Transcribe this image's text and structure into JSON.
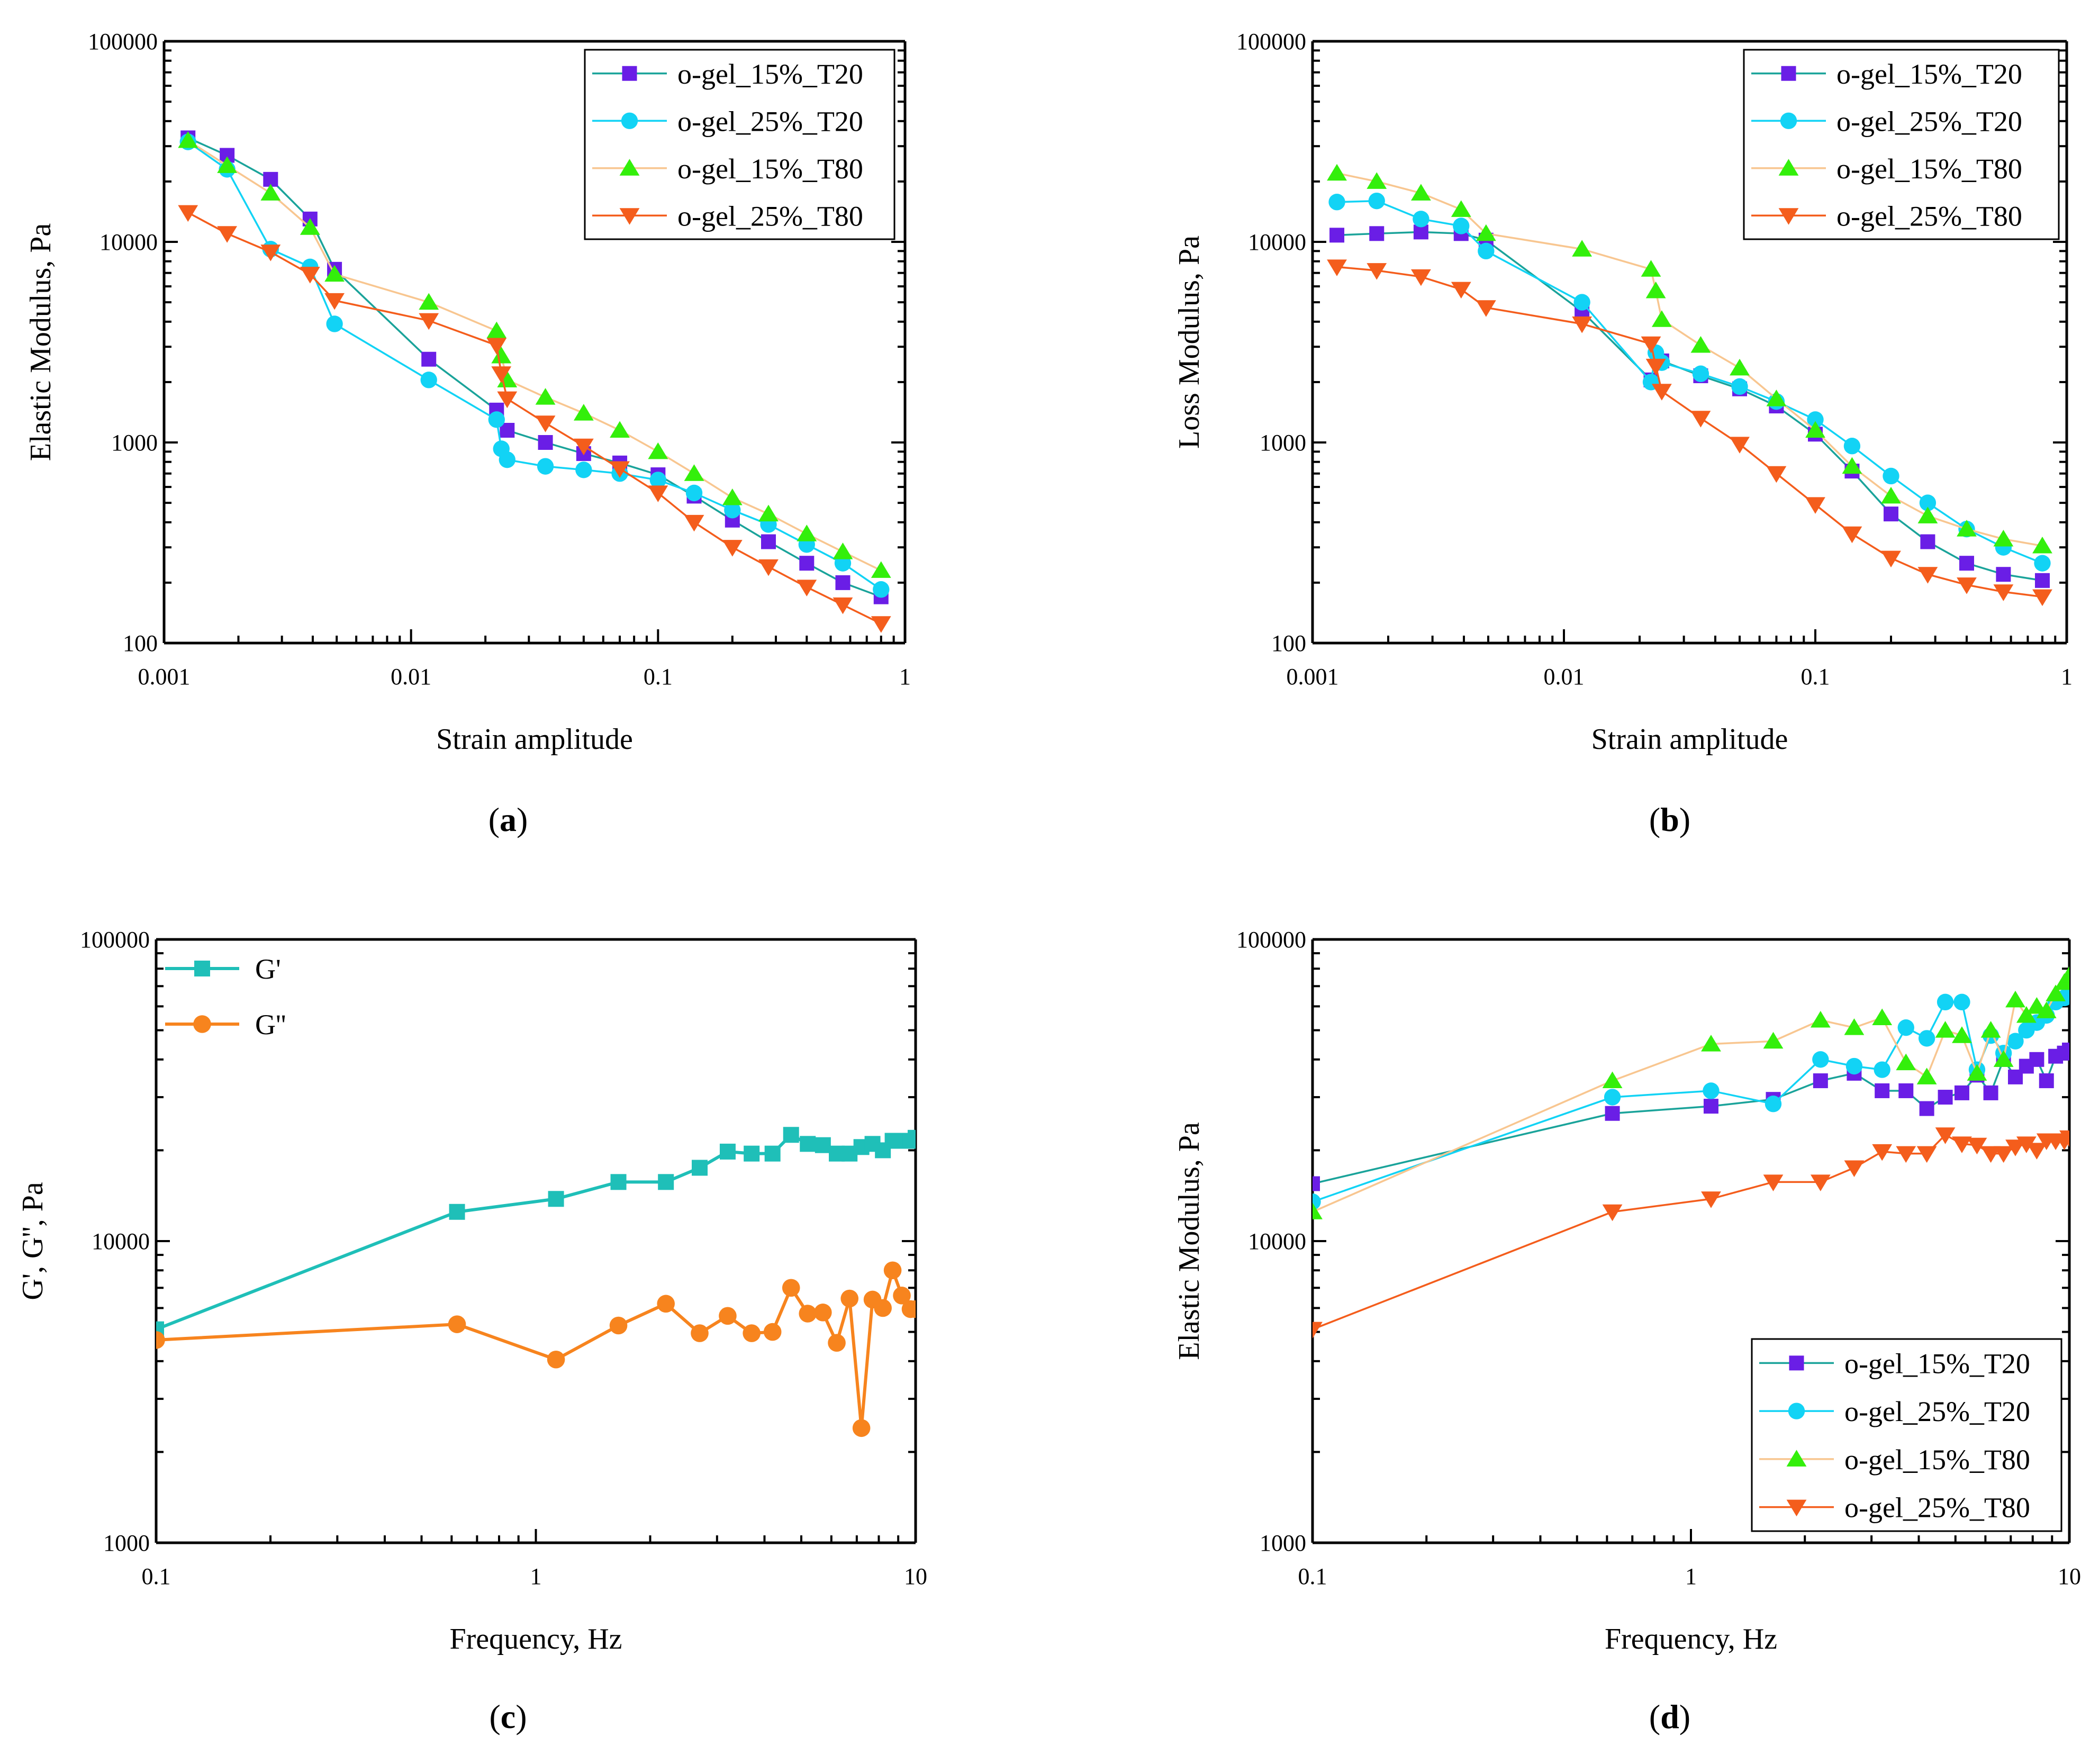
{
  "chart_data": [
    {
      "type": "line",
      "panel_label": "a",
      "xlabel": "Strain amplitude",
      "ylabel": "Elastic Modulus, Pa",
      "xscale": "log",
      "yscale": "log",
      "xlim": [
        0.001,
        1
      ],
      "ylim": [
        100,
        100000
      ],
      "xticks": [
        0.001,
        0.01,
        0.1,
        1
      ],
      "xtick_labels": [
        "0.001",
        "0.01",
        "0.1",
        "1"
      ],
      "yticks": [
        100,
        1000,
        10000,
        100000
      ],
      "ytick_labels": [
        "100",
        "1000",
        "10000",
        "100000"
      ],
      "legend": "top-right",
      "series": [
        {
          "name": "o-gel_15%_T20",
          "color": "#6a1ee6",
          "line_color": "#1aa39a",
          "marker": "square",
          "x": [
            0.00125,
            0.0018,
            0.0027,
            0.0039,
            0.0049,
            0.0118,
            0.0222,
            0.0245,
            0.035,
            0.05,
            0.07,
            0.1,
            0.14,
            0.2,
            0.28,
            0.4,
            0.56,
            0.8
          ],
          "y": [
            33000,
            27000,
            20500,
            13000,
            7300,
            2600,
            1450,
            1150,
            1000,
            880,
            790,
            690,
            540,
            410,
            320,
            250,
            200,
            170
          ]
        },
        {
          "name": "o-gel_25%_T20",
          "color": "#12d3f5",
          "line_color": "#12d3f5",
          "marker": "circle",
          "x": [
            0.00125,
            0.0018,
            0.0027,
            0.0039,
            0.0049,
            0.0118,
            0.0222,
            0.0232,
            0.0245,
            0.035,
            0.05,
            0.07,
            0.1,
            0.14,
            0.2,
            0.28,
            0.4,
            0.56,
            0.8
          ],
          "y": [
            31500,
            23000,
            9200,
            7500,
            3900,
            2050,
            1300,
            930,
            820,
            760,
            730,
            700,
            650,
            560,
            460,
            390,
            310,
            250,
            185
          ]
        },
        {
          "name": "o-gel_15%_T80",
          "color": "#33ef0b",
          "line_color": "#f8c690",
          "marker": "triangle-up",
          "x": [
            0.00125,
            0.0018,
            0.0027,
            0.0039,
            0.0049,
            0.0118,
            0.0222,
            0.0232,
            0.0245,
            0.035,
            0.05,
            0.07,
            0.1,
            0.14,
            0.2,
            0.28,
            0.4,
            0.56,
            0.8
          ],
          "y": [
            32000,
            24000,
            17500,
            11800,
            6900,
            5000,
            3600,
            2700,
            2050,
            1680,
            1400,
            1150,
            900,
            700,
            530,
            440,
            350,
            285,
            230
          ]
        },
        {
          "name": "o-gel_25%_T80",
          "color": "#f45d1c",
          "line_color": "#f45d1c",
          "marker": "triangle-down",
          "x": [
            0.00125,
            0.0018,
            0.0027,
            0.0039,
            0.0049,
            0.0118,
            0.0222,
            0.0232,
            0.0245,
            0.035,
            0.05,
            0.07,
            0.1,
            0.14,
            0.2,
            0.28,
            0.4,
            0.56,
            0.8
          ],
          "y": [
            14000,
            11000,
            8900,
            6900,
            5100,
            4050,
            3050,
            2200,
            1650,
            1250,
            960,
            740,
            560,
            400,
            300,
            240,
            190,
            155,
            125
          ]
        }
      ]
    },
    {
      "type": "line",
      "panel_label": "b",
      "xlabel": "Strain amplitude",
      "ylabel": "Loss Modulus, Pa",
      "xscale": "log",
      "yscale": "log",
      "xlim": [
        0.001,
        1
      ],
      "ylim": [
        100,
        100000
      ],
      "xticks": [
        0.001,
        0.01,
        0.1,
        1
      ],
      "xtick_labels": [
        "0.001",
        "0.01",
        "0.1",
        "1"
      ],
      "yticks": [
        100,
        1000,
        10000,
        100000
      ],
      "ytick_labels": [
        "100",
        "1000",
        "10000",
        "100000"
      ],
      "legend": "top-right",
      "series": [
        {
          "name": "o-gel_15%_T20",
          "color": "#6a1ee6",
          "line_color": "#1aa39a",
          "marker": "square",
          "x": [
            0.00125,
            0.0018,
            0.0027,
            0.0039,
            0.0049,
            0.0118,
            0.0222,
            0.0245,
            0.035,
            0.05,
            0.07,
            0.1,
            0.14,
            0.2,
            0.28,
            0.4,
            0.56,
            0.8
          ],
          "y": [
            10800,
            11000,
            11200,
            11000,
            10200,
            4500,
            2050,
            2550,
            2150,
            1850,
            1520,
            1100,
            720,
            440,
            320,
            250,
            220,
            205
          ]
        },
        {
          "name": "o-gel_25%_T20",
          "color": "#12d3f5",
          "line_color": "#12d3f5",
          "marker": "circle",
          "x": [
            0.00125,
            0.0018,
            0.0027,
            0.0039,
            0.0049,
            0.0118,
            0.0222,
            0.0232,
            0.0245,
            0.035,
            0.05,
            0.07,
            0.1,
            0.14,
            0.2,
            0.28,
            0.4,
            0.56,
            0.8
          ],
          "y": [
            15800,
            16000,
            13000,
            12000,
            9000,
            5000,
            2000,
            2800,
            2500,
            2200,
            1900,
            1600,
            1300,
            960,
            680,
            500,
            370,
            300,
            250
          ]
        },
        {
          "name": "o-gel_15%_T80",
          "color": "#33ef0b",
          "line_color": "#f8c690",
          "marker": "triangle-up",
          "x": [
            0.00125,
            0.0018,
            0.0027,
            0.0039,
            0.0049,
            0.0118,
            0.0222,
            0.0232,
            0.0245,
            0.035,
            0.05,
            0.07,
            0.1,
            0.14,
            0.2,
            0.28,
            0.4,
            0.56,
            0.8
          ],
          "y": [
            22000,
            20000,
            17500,
            14500,
            11000,
            9200,
            7300,
            5700,
            4100,
            3050,
            2350,
            1650,
            1150,
            760,
            540,
            430,
            370,
            330,
            305
          ]
        },
        {
          "name": "o-gel_25%_T80",
          "color": "#f45d1c",
          "line_color": "#f45d1c",
          "marker": "triangle-down",
          "x": [
            0.00125,
            0.0018,
            0.0027,
            0.0039,
            0.0049,
            0.0118,
            0.0222,
            0.0232,
            0.0245,
            0.035,
            0.05,
            0.07,
            0.1,
            0.14,
            0.2,
            0.28,
            0.4,
            0.56,
            0.8
          ],
          "y": [
            7500,
            7200,
            6700,
            5800,
            4700,
            3900,
            3100,
            2400,
            1800,
            1320,
            980,
            700,
            490,
            350,
            265,
            220,
            195,
            180,
            170
          ]
        }
      ]
    },
    {
      "type": "line",
      "panel_label": "c",
      "xlabel": "Frequency, Hz",
      "ylabel": "G', G'', Pa",
      "xscale": "log",
      "yscale": "log",
      "xlim": [
        0.1,
        10
      ],
      "ylim": [
        1000,
        100000
      ],
      "xticks": [
        0.1,
        1,
        10
      ],
      "xtick_labels": [
        "0.1",
        "1",
        "10"
      ],
      "yticks": [
        1000,
        10000,
        100000
      ],
      "ytick_labels": [
        "1000",
        "10000",
        "100000"
      ],
      "legend": "top-left",
      "series": [
        {
          "name": "G'",
          "color": "#1fbfb8",
          "line_color": "#1fbfb8",
          "marker": "square",
          "x": [
            0.1,
            0.62,
            1.13,
            1.65,
            2.2,
            2.7,
            3.2,
            3.7,
            4.2,
            4.7,
            5.2,
            5.7,
            6.2,
            6.7,
            7.2,
            7.7,
            8.2,
            8.7,
            9.2,
            9.7,
            10
          ],
          "y": [
            5100,
            12500,
            13800,
            15700,
            15700,
            17500,
            19800,
            19500,
            19500,
            22500,
            21000,
            20800,
            19500,
            19500,
            20500,
            21000,
            20000,
            21500,
            21500,
            21500,
            22000
          ]
        },
        {
          "name": "G''",
          "color": "#f7841e",
          "line_color": "#f7841e",
          "marker": "circle",
          "x": [
            0.1,
            0.62,
            1.13,
            1.65,
            2.2,
            2.7,
            3.2,
            3.7,
            4.2,
            4.7,
            5.2,
            5.7,
            6.2,
            6.7,
            7.2,
            7.7,
            8.2,
            8.7,
            9.2,
            9.7,
            10
          ],
          "y": [
            4700,
            5300,
            4050,
            5250,
            6200,
            4950,
            5650,
            4950,
            5000,
            7000,
            5750,
            5800,
            4600,
            6450,
            2400,
            6400,
            6000,
            8000,
            6600,
            5950,
            5950
          ]
        }
      ]
    },
    {
      "type": "line",
      "panel_label": "d",
      "xlabel": "Frequency, Hz",
      "ylabel": "Elastic Modulus, Pa",
      "xscale": "log",
      "yscale": "log",
      "xlim": [
        0.1,
        10
      ],
      "ylim": [
        1000,
        100000
      ],
      "xticks": [
        0.1,
        1,
        10
      ],
      "xtick_labels": [
        "0.1",
        "1",
        "10"
      ],
      "yticks": [
        1000,
        10000,
        100000
      ],
      "ytick_labels": [
        "1000",
        "10000",
        "100000"
      ],
      "legend": "bottom-right",
      "series": [
        {
          "name": "o-gel_15%_T20",
          "color": "#6a1ee6",
          "line_color": "#1aa39a",
          "marker": "square",
          "x": [
            0.1,
            0.62,
            1.13,
            1.65,
            2.2,
            2.7,
            3.2,
            3.7,
            4.2,
            4.7,
            5.2,
            5.7,
            6.2,
            6.7,
            7.2,
            7.7,
            8.2,
            8.7,
            9.2,
            9.7,
            10
          ],
          "y": [
            15500,
            26500,
            28000,
            29500,
            34000,
            36000,
            31500,
            31500,
            27500,
            30000,
            31000,
            35500,
            31000,
            40000,
            35000,
            38000,
            40000,
            34000,
            41000,
            42000,
            43000
          ]
        },
        {
          "name": "o-gel_25%_T20",
          "color": "#12d3f5",
          "line_color": "#12d3f5",
          "marker": "circle",
          "x": [
            0.1,
            0.62,
            1.13,
            1.65,
            2.2,
            2.7,
            3.2,
            3.7,
            4.2,
            4.7,
            5.2,
            5.7,
            6.2,
            6.7,
            7.2,
            7.7,
            8.2,
            8.7,
            9.2,
            9.7,
            10
          ],
          "y": [
            13500,
            30000,
            31500,
            28500,
            40000,
            38000,
            37000,
            51000,
            47000,
            62000,
            62000,
            37000,
            48000,
            42000,
            46000,
            50000,
            53000,
            56000,
            62000,
            64000,
            67000
          ]
        },
        {
          "name": "o-gel_15%_T80",
          "color": "#33ef0b",
          "line_color": "#f8c690",
          "marker": "triangle-up",
          "x": [
            0.1,
            0.62,
            1.13,
            1.65,
            2.2,
            2.7,
            3.2,
            3.7,
            4.2,
            4.7,
            5.2,
            5.7,
            6.2,
            6.7,
            7.2,
            7.7,
            8.2,
            8.7,
            9.2,
            9.7,
            10
          ],
          "y": [
            12500,
            34000,
            45000,
            46000,
            54000,
            51000,
            55000,
            39000,
            35000,
            50000,
            48000,
            36000,
            50000,
            40000,
            63000,
            56000,
            60000,
            58000,
            66000,
            72000,
            76000
          ]
        },
        {
          "name": "o-gel_25%_T80",
          "color": "#f45d1c",
          "line_color": "#f45d1c",
          "marker": "triangle-down",
          "x": [
            0.1,
            0.62,
            1.13,
            1.65,
            2.2,
            2.7,
            3.2,
            3.7,
            4.2,
            4.7,
            5.2,
            5.7,
            6.2,
            6.7,
            7.2,
            7.7,
            8.2,
            8.7,
            9.2,
            9.7,
            10
          ],
          "y": [
            5100,
            12500,
            13800,
            15700,
            15700,
            17500,
            19800,
            19500,
            19500,
            22500,
            21000,
            20800,
            19500,
            19500,
            20500,
            21000,
            20000,
            21500,
            21500,
            21500,
            22000
          ]
        }
      ]
    }
  ]
}
